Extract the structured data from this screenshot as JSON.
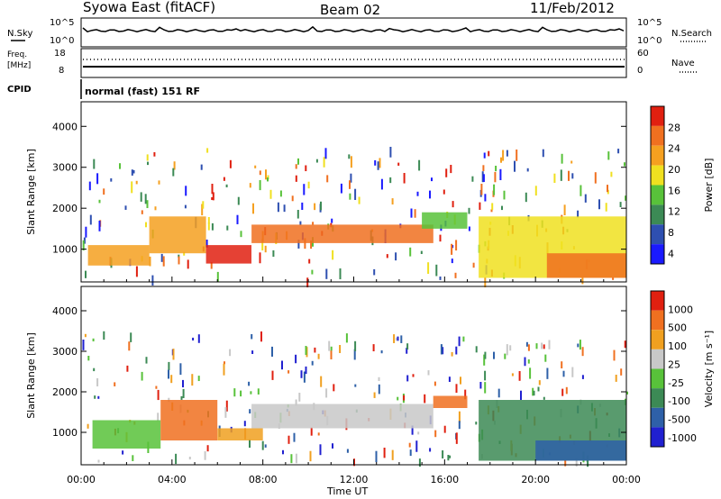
{
  "header": {
    "station": "Syowa East (fitACF)",
    "beam": "Beam 02",
    "date": "11/Feb/2012"
  },
  "noise_panel": {
    "left_label": "N.Sky",
    "right_label": "N.Search",
    "left_ticks": [
      "10^5",
      "10^0"
    ],
    "right_ticks": [
      "10^5",
      "10^0"
    ]
  },
  "freq_panel": {
    "left_label_1": "Freq.",
    "left_label_2": "[MHz]",
    "right_label": "Nave",
    "left_ticks": [
      "18",
      "8"
    ],
    "right_ticks": [
      "60",
      "0"
    ]
  },
  "cpid": {
    "label": "CPID",
    "value": "normal (fast) 151 RF"
  },
  "x_axis": {
    "title": "Time UT",
    "ticks": [
      "00:00",
      "04:00",
      "08:00",
      "12:00",
      "16:00",
      "20:00",
      "00:00"
    ]
  },
  "colors": {
    "power": [
      "#1a1aff",
      "#2e4fb0",
      "#3c8a55",
      "#58c23a",
      "#f0e020",
      "#f5a020",
      "#f07020",
      "#e02010"
    ],
    "velocity": [
      "#2020d0",
      "#2e60a8",
      "#3c8a55",
      "#58c23a",
      "#c8c8c8",
      "#f0a020",
      "#f07020",
      "#e02010"
    ]
  },
  "chart_data": [
    {
      "type": "heatmap",
      "title": "Power",
      "ylabel": "Slant Range [km]",
      "xlabel": "Time UT",
      "xlim": [
        0,
        24
      ],
      "ylim": [
        200,
        4600
      ],
      "yticks": [
        "1000",
        "2000",
        "3000",
        "4000"
      ],
      "colorbar_label": "Power [dB]",
      "colorbar_ticks": [
        "28",
        "24",
        "20",
        "16",
        "12",
        "8",
        "4"
      ],
      "bands": [
        {
          "t0": 0.3,
          "t1": 3.0,
          "r0": 600,
          "r1": 1100,
          "level": 5
        },
        {
          "t0": 3.0,
          "t1": 5.5,
          "r0": 900,
          "r1": 1800,
          "level": 5
        },
        {
          "t0": 5.5,
          "t1": 7.5,
          "r0": 650,
          "r1": 1100,
          "level": 7
        },
        {
          "t0": 7.5,
          "t1": 15.5,
          "r0": 1150,
          "r1": 1600,
          "level": 6
        },
        {
          "t0": 15.0,
          "t1": 17.0,
          "r0": 1500,
          "r1": 1900,
          "level": 3
        },
        {
          "t0": 17.5,
          "t1": 24.0,
          "r0": 300,
          "r1": 1800,
          "level": 4
        },
        {
          "t0": 20.5,
          "t1": 24.0,
          "r0": 300,
          "r1": 900,
          "level": 6
        }
      ]
    },
    {
      "type": "heatmap",
      "title": "Velocity",
      "ylabel": "Slant Range [km]",
      "xlabel": "Time UT",
      "xlim": [
        0,
        24
      ],
      "ylim": [
        200,
        4600
      ],
      "yticks": [
        "1000",
        "2000",
        "3000",
        "4000"
      ],
      "colorbar_label": "Velocity [m s⁻¹]",
      "colorbar_ticks": [
        "1000",
        "500",
        "100",
        "25",
        "-25",
        "-100",
        "-500",
        "-1000"
      ],
      "bands": [
        {
          "t0": 0.5,
          "t1": 3.5,
          "r0": 600,
          "r1": 1300,
          "level": 3
        },
        {
          "t0": 3.5,
          "t1": 6.0,
          "r0": 800,
          "r1": 1800,
          "level": 6
        },
        {
          "t0": 6.0,
          "t1": 8.0,
          "r0": 800,
          "r1": 1100,
          "level": 5
        },
        {
          "t0": 7.5,
          "t1": 15.5,
          "r0": 1100,
          "r1": 1700,
          "level": 4
        },
        {
          "t0": 15.5,
          "t1": 17.0,
          "r0": 1600,
          "r1": 1900,
          "level": 6
        },
        {
          "t0": 17.5,
          "t1": 24.0,
          "r0": 300,
          "r1": 1800,
          "level": 2
        },
        {
          "t0": 20.0,
          "t1": 24.0,
          "r0": 300,
          "r1": 800,
          "level": 1
        }
      ]
    }
  ]
}
